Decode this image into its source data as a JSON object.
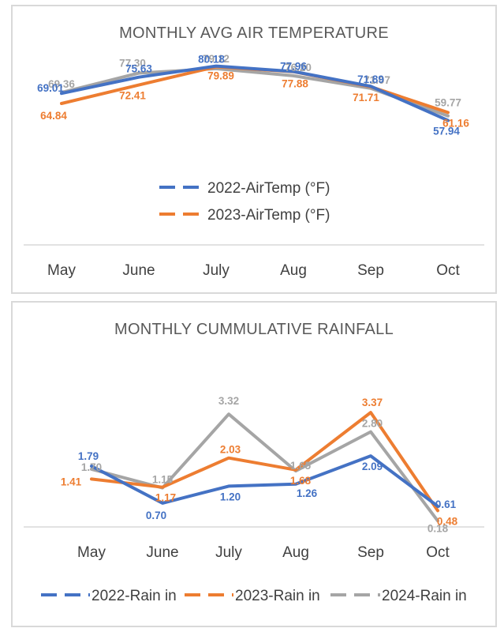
{
  "colors": {
    "2022": "#4472c4",
    "2023": "#ed7d31",
    "2024": "#a5a5a5"
  },
  "chart_data": [
    {
      "type": "line",
      "title": "MONTHLY AVG AIR TEMPERATURE",
      "categories": [
        "May",
        "June",
        "July",
        "Aug",
        "Sep",
        "Oct"
      ],
      "ylim": [
        60,
        82
      ],
      "series": [
        {
          "name": "2024",
          "legend": "",
          "color": "#a5a5a5",
          "values": [
            69.36,
            77.3,
            79.12,
            76.2,
            71.07,
            59.77
          ],
          "labels": [
            "69.36",
            "77.30",
            "79.12",
            "76.20",
            "71.07",
            "59.77"
          ]
        },
        {
          "name": "2023",
          "legend": "2023-AirTemp (°F)",
          "color": "#ed7d31",
          "values": [
            64.84,
            72.41,
            79.89,
            77.88,
            71.71,
            61.16
          ],
          "labels": [
            "64.84",
            "72.41",
            "79.89",
            "77.88",
            "71.71",
            "61.16"
          ]
        },
        {
          "name": "2022",
          "legend": "2022-AirTemp (°F)",
          "color": "#4472c4",
          "values": [
            69.01,
            75.63,
            80.18,
            77.96,
            71.89,
            57.94
          ],
          "labels": [
            "69.01",
            "75.63",
            "80.18",
            "77.96",
            "71.89",
            "57.94"
          ]
        }
      ],
      "legend": [
        "2022-AirTemp (°F)",
        "2023-AirTemp (°F)"
      ]
    },
    {
      "type": "line",
      "title": "MONTHLY CUMMULATIVE RAINFALL",
      "categories": [
        "May",
        "June",
        "July",
        "Aug",
        "Sep",
        "Oct"
      ],
      "ylim": [
        0,
        4
      ],
      "series": [
        {
          "name": "2024",
          "legend": "2024-Rain in",
          "color": "#a5a5a5",
          "values": [
            1.7,
            1.15,
            3.32,
            1.65,
            2.8,
            0.18
          ],
          "labels": [
            "1.70",
            "1.15",
            "3.32",
            "1.65",
            "2.80",
            "0.18"
          ]
        },
        {
          "name": "2023",
          "legend": "2023-Rain in",
          "color": "#ed7d31",
          "values": [
            1.41,
            1.17,
            2.03,
            1.68,
            3.37,
            0.48
          ],
          "labels": [
            "1.41",
            "1.17",
            "2.03",
            "1.68",
            "3.37",
            "0.48"
          ]
        },
        {
          "name": "2022",
          "legend": "2022-Rain in",
          "color": "#4472c4",
          "values": [
            1.79,
            0.7,
            1.2,
            1.26,
            2.09,
            0.61
          ],
          "labels": [
            "1.79",
            "0.70",
            "1.20",
            "1.26",
            "2.09",
            "0.61"
          ]
        }
      ],
      "legend": [
        "2022-Rain in",
        "2023-Rain in",
        "2024-Rain in"
      ]
    }
  ]
}
